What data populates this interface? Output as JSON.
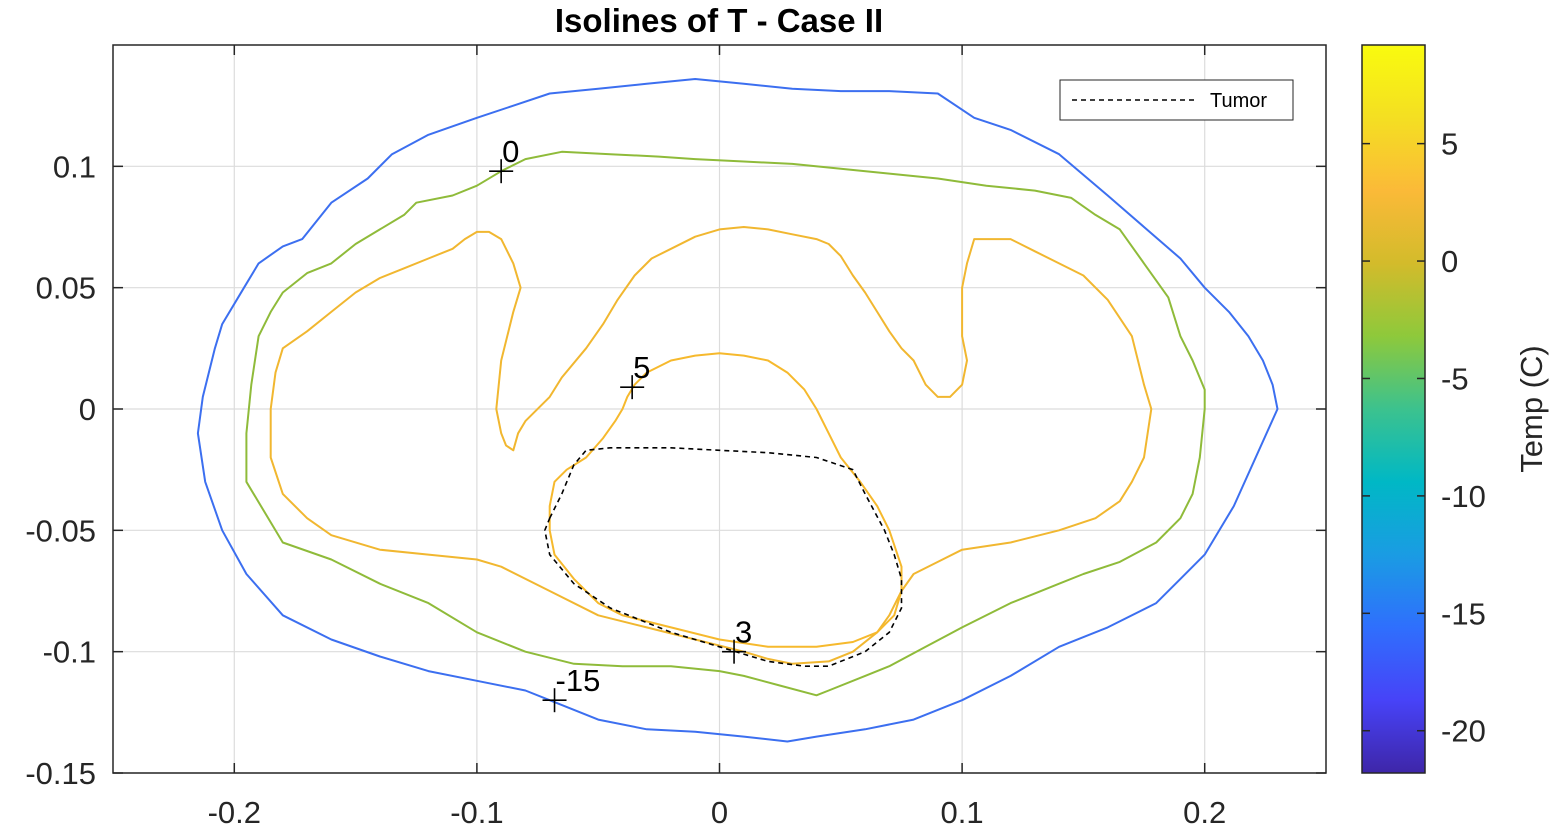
{
  "chart_data": {
    "type": "contour",
    "title": "Isolines of T - Case II",
    "xlabel": "",
    "ylabel": "",
    "xlim": [
      -0.25,
      0.25
    ],
    "ylim": [
      -0.15,
      0.15
    ],
    "xticks": [
      -0.2,
      -0.1,
      0,
      0.1,
      0.2
    ],
    "xtick_labels": [
      "-0.2",
      "-0.1",
      "0",
      "0.1",
      "0.2"
    ],
    "yticks": [
      -0.15,
      -0.1,
      -0.05,
      0,
      0.05,
      0.1
    ],
    "ytick_labels": [
      "-0.15",
      "-0.1",
      "-0.05",
      "0",
      "0.05",
      "0.1"
    ],
    "grid": true,
    "colorbar": {
      "label": "Temp (C)",
      "range": [
        -21.8,
        9.2
      ],
      "ticks": [
        -20,
        -15,
        -10,
        -5,
        0,
        5
      ],
      "tick_labels": [
        "-20",
        "-15",
        "-10",
        "-5",
        "0",
        "5"
      ],
      "colors": [
        "#3e26a8",
        "#4743f8",
        "#2f6ffd",
        "#1a9ce3",
        "#00b8c5",
        "#3cc28e",
        "#8ec93b",
        "#d3bb2b",
        "#fbba38",
        "#f4df22",
        "#f9fb0e"
      ]
    },
    "legend": {
      "entries": [
        "Tumor"
      ],
      "placement": "top-right"
    },
    "isolines": [
      {
        "level": -15,
        "color": "#3c6ff0",
        "points": [
          [
            -0.215,
            -0.01
          ],
          [
            -0.213,
            0.005
          ],
          [
            -0.208,
            0.025
          ],
          [
            -0.205,
            0.035
          ],
          [
            -0.196,
            0.05
          ],
          [
            -0.19,
            0.06
          ],
          [
            -0.18,
            0.067
          ],
          [
            -0.172,
            0.07
          ],
          [
            -0.16,
            0.085
          ],
          [
            -0.145,
            0.095
          ],
          [
            -0.135,
            0.105
          ],
          [
            -0.12,
            0.113
          ],
          [
            -0.1,
            0.12
          ],
          [
            -0.085,
            0.125
          ],
          [
            -0.07,
            0.13
          ],
          [
            -0.05,
            0.132
          ],
          [
            -0.03,
            0.134
          ],
          [
            -0.01,
            0.136
          ],
          [
            0.01,
            0.134
          ],
          [
            0.03,
            0.132
          ],
          [
            0.05,
            0.131
          ],
          [
            0.07,
            0.131
          ],
          [
            0.09,
            0.13
          ],
          [
            0.105,
            0.12
          ],
          [
            0.12,
            0.115
          ],
          [
            0.14,
            0.105
          ],
          [
            0.16,
            0.088
          ],
          [
            0.175,
            0.075
          ],
          [
            0.19,
            0.062
          ],
          [
            0.2,
            0.05
          ],
          [
            0.21,
            0.04
          ],
          [
            0.218,
            0.03
          ],
          [
            0.224,
            0.02
          ],
          [
            0.228,
            0.01
          ],
          [
            0.23,
            0
          ],
          [
            0.212,
            -0.04
          ],
          [
            0.2,
            -0.06
          ],
          [
            0.19,
            -0.07
          ],
          [
            0.18,
            -0.08
          ],
          [
            0.16,
            -0.09
          ],
          [
            0.14,
            -0.098
          ],
          [
            0.12,
            -0.11
          ],
          [
            0.1,
            -0.12
          ],
          [
            0.08,
            -0.128
          ],
          [
            0.06,
            -0.132
          ],
          [
            0.04,
            -0.135
          ],
          [
            0.028,
            -0.137
          ],
          [
            0.01,
            -0.135
          ],
          [
            -0.01,
            -0.133
          ],
          [
            -0.03,
            -0.132
          ],
          [
            -0.05,
            -0.128
          ],
          [
            -0.07,
            -0.12
          ],
          [
            -0.08,
            -0.116
          ],
          [
            -0.1,
            -0.112
          ],
          [
            -0.12,
            -0.108
          ],
          [
            -0.14,
            -0.102
          ],
          [
            -0.16,
            -0.095
          ],
          [
            -0.18,
            -0.085
          ],
          [
            -0.195,
            -0.068
          ],
          [
            -0.205,
            -0.05
          ],
          [
            -0.212,
            -0.03
          ],
          [
            -0.215,
            -0.01
          ]
        ]
      },
      {
        "level": 0,
        "color": "#8fbb3a",
        "points": [
          [
            -0.195,
            -0.03
          ],
          [
            -0.195,
            -0.01
          ],
          [
            -0.193,
            0.01
          ],
          [
            -0.19,
            0.03
          ],
          [
            -0.185,
            0.04
          ],
          [
            -0.18,
            0.048
          ],
          [
            -0.17,
            0.056
          ],
          [
            -0.16,
            0.06
          ],
          [
            -0.15,
            0.068
          ],
          [
            -0.14,
            0.074
          ],
          [
            -0.13,
            0.08
          ],
          [
            -0.125,
            0.085
          ],
          [
            -0.11,
            0.088
          ],
          [
            -0.1,
            0.092
          ],
          [
            -0.09,
            0.098
          ],
          [
            -0.08,
            0.103
          ],
          [
            -0.065,
            0.106
          ],
          [
            -0.045,
            0.105
          ],
          [
            -0.025,
            0.104
          ],
          [
            -0.01,
            0.103
          ],
          [
            0.01,
            0.102
          ],
          [
            0.03,
            0.101
          ],
          [
            0.05,
            0.099
          ],
          [
            0.07,
            0.097
          ],
          [
            0.09,
            0.095
          ],
          [
            0.11,
            0.092
          ],
          [
            0.13,
            0.09
          ],
          [
            0.145,
            0.087
          ],
          [
            0.155,
            0.08
          ],
          [
            0.165,
            0.074
          ],
          [
            0.175,
            0.06
          ],
          [
            0.185,
            0.046
          ],
          [
            0.19,
            0.03
          ],
          [
            0.195,
            0.02
          ],
          [
            0.2,
            0.008
          ],
          [
            0.2,
            0
          ],
          [
            0.198,
            -0.02
          ],
          [
            0.195,
            -0.035
          ],
          [
            0.19,
            -0.045
          ],
          [
            0.18,
            -0.055
          ],
          [
            0.165,
            -0.063
          ],
          [
            0.15,
            -0.068
          ],
          [
            0.14,
            -0.072
          ],
          [
            0.13,
            -0.076
          ],
          [
            0.12,
            -0.08
          ],
          [
            0.1,
            -0.09
          ],
          [
            0.085,
            -0.098
          ],
          [
            0.07,
            -0.106
          ],
          [
            0.06,
            -0.11
          ],
          [
            0.045,
            -0.116
          ],
          [
            0.04,
            -0.118
          ],
          [
            0.025,
            -0.114
          ],
          [
            0.01,
            -0.11
          ],
          [
            0,
            -0.108
          ],
          [
            -0.02,
            -0.106
          ],
          [
            -0.04,
            -0.106
          ],
          [
            -0.06,
            -0.105
          ],
          [
            -0.08,
            -0.1
          ],
          [
            -0.1,
            -0.092
          ],
          [
            -0.12,
            -0.08
          ],
          [
            -0.14,
            -0.072
          ],
          [
            -0.16,
            -0.062
          ],
          [
            -0.18,
            -0.055
          ],
          [
            -0.195,
            -0.03
          ]
        ]
      },
      {
        "level": 3,
        "color": "#f1b730",
        "points": [
          [
            -0.185,
            -0.02
          ],
          [
            -0.185,
            0
          ],
          [
            -0.183,
            0.015
          ],
          [
            -0.18,
            0.025
          ],
          [
            -0.17,
            0.032
          ],
          [
            -0.16,
            0.04
          ],
          [
            -0.15,
            0.048
          ],
          [
            -0.14,
            0.054
          ],
          [
            -0.13,
            0.058
          ],
          [
            -0.12,
            0.062
          ],
          [
            -0.11,
            0.066
          ],
          [
            -0.105,
            0.07
          ],
          [
            -0.1,
            0.073
          ],
          [
            -0.095,
            0.073
          ],
          [
            -0.09,
            0.07
          ],
          [
            -0.085,
            0.06
          ],
          [
            -0.082,
            0.05
          ],
          [
            -0.085,
            0.04
          ],
          [
            -0.09,
            0.02
          ],
          [
            -0.092,
            0
          ],
          [
            -0.09,
            -0.01
          ],
          [
            -0.088,
            -0.015
          ],
          [
            -0.085,
            -0.017
          ],
          [
            -0.083,
            -0.01
          ],
          [
            -0.08,
            -0.005
          ],
          [
            -0.07,
            0.005
          ],
          [
            -0.065,
            0.013
          ],
          [
            -0.055,
            0.025
          ],
          [
            -0.048,
            0.035
          ],
          [
            -0.042,
            0.045
          ],
          [
            -0.035,
            0.055
          ],
          [
            -0.028,
            0.062
          ],
          [
            -0.02,
            0.066
          ],
          [
            -0.01,
            0.071
          ],
          [
            0,
            0.074
          ],
          [
            0.01,
            0.075
          ],
          [
            0.02,
            0.074
          ],
          [
            0.03,
            0.072
          ],
          [
            0.04,
            0.07
          ],
          [
            0.045,
            0.068
          ],
          [
            0.05,
            0.063
          ],
          [
            0.055,
            0.055
          ],
          [
            0.06,
            0.048
          ],
          [
            0.065,
            0.04
          ],
          [
            0.07,
            0.032
          ],
          [
            0.075,
            0.025
          ],
          [
            0.08,
            0.02
          ],
          [
            0.085,
            0.01
          ],
          [
            0.09,
            0.005
          ],
          [
            0.095,
            0.005
          ],
          [
            0.1,
            0.01
          ],
          [
            0.102,
            0.02
          ],
          [
            0.1,
            0.03
          ],
          [
            0.1,
            0.04
          ],
          [
            0.1,
            0.05
          ],
          [
            0.102,
            0.06
          ],
          [
            0.105,
            0.07
          ],
          [
            0.11,
            0.07
          ],
          [
            0.12,
            0.07
          ],
          [
            0.13,
            0.065
          ],
          [
            0.14,
            0.06
          ],
          [
            0.15,
            0.055
          ],
          [
            0.16,
            0.045
          ],
          [
            0.17,
            0.03
          ],
          [
            0.175,
            0.01
          ],
          [
            0.178,
            0
          ],
          [
            0.175,
            -0.02
          ],
          [
            0.17,
            -0.03
          ],
          [
            0.165,
            -0.038
          ],
          [
            0.155,
            -0.045
          ],
          [
            0.14,
            -0.05
          ],
          [
            0.12,
            -0.055
          ],
          [
            0.1,
            -0.058
          ],
          [
            0.09,
            -0.063
          ],
          [
            0.08,
            -0.068
          ],
          [
            0.075,
            -0.075
          ],
          [
            0.07,
            -0.085
          ],
          [
            0.065,
            -0.092
          ],
          [
            0.055,
            -0.1
          ],
          [
            0.045,
            -0.104
          ],
          [
            0.03,
            -0.105
          ],
          [
            0.02,
            -0.103
          ],
          [
            0.01,
            -0.1
          ],
          [
            -0.01,
            -0.095
          ],
          [
            -0.03,
            -0.09
          ],
          [
            -0.05,
            -0.085
          ],
          [
            -0.07,
            -0.075
          ],
          [
            -0.09,
            -0.065
          ],
          [
            -0.1,
            -0.062
          ],
          [
            -0.12,
            -0.06
          ],
          [
            -0.14,
            -0.058
          ],
          [
            -0.16,
            -0.052
          ],
          [
            -0.17,
            -0.045
          ],
          [
            -0.18,
            -0.035
          ],
          [
            -0.185,
            -0.02
          ]
        ]
      },
      {
        "level": 5,
        "color": "#f6b92d",
        "points": [
          [
            -0.07,
            -0.04
          ],
          [
            -0.07,
            -0.05
          ],
          [
            -0.068,
            -0.06
          ],
          [
            -0.06,
            -0.07
          ],
          [
            -0.05,
            -0.08
          ],
          [
            -0.04,
            -0.085
          ],
          [
            -0.02,
            -0.09
          ],
          [
            0,
            -0.095
          ],
          [
            0.02,
            -0.098
          ],
          [
            0.04,
            -0.098
          ],
          [
            0.055,
            -0.096
          ],
          [
            0.065,
            -0.092
          ],
          [
            0.072,
            -0.085
          ],
          [
            0.075,
            -0.075
          ],
          [
            0.075,
            -0.065
          ],
          [
            0.07,
            -0.05
          ],
          [
            0.065,
            -0.04
          ],
          [
            0.058,
            -0.03
          ],
          [
            0.05,
            -0.02
          ],
          [
            0.045,
            -0.01
          ],
          [
            0.04,
            0
          ],
          [
            0.035,
            0.008
          ],
          [
            0.028,
            0.015
          ],
          [
            0.02,
            0.02
          ],
          [
            0.01,
            0.022
          ],
          [
            0,
            0.023
          ],
          [
            -0.01,
            0.022
          ],
          [
            -0.02,
            0.02
          ],
          [
            -0.03,
            0.015
          ],
          [
            -0.035,
            0.01
          ],
          [
            -0.038,
            0.005
          ],
          [
            -0.04,
            0
          ],
          [
            -0.043,
            -0.005
          ],
          [
            -0.048,
            -0.012
          ],
          [
            -0.055,
            -0.02
          ],
          [
            -0.063,
            -0.025
          ],
          [
            -0.068,
            -0.03
          ],
          [
            -0.07,
            -0.04
          ]
        ]
      }
    ],
    "tumor": {
      "style": "dashed",
      "color": "#000000",
      "points": [
        [
          -0.07,
          -0.045
        ],
        [
          -0.065,
          -0.035
        ],
        [
          -0.06,
          -0.023
        ],
        [
          -0.055,
          -0.017
        ],
        [
          -0.045,
          -0.016
        ],
        [
          -0.02,
          -0.016
        ],
        [
          0,
          -0.017
        ],
        [
          0.02,
          -0.018
        ],
        [
          0.04,
          -0.02
        ],
        [
          0.055,
          -0.025
        ],
        [
          0.06,
          -0.035
        ],
        [
          0.068,
          -0.05
        ],
        [
          0.072,
          -0.06
        ],
        [
          0.075,
          -0.07
        ],
        [
          0.075,
          -0.082
        ],
        [
          0.07,
          -0.092
        ],
        [
          0.06,
          -0.1
        ],
        [
          0.045,
          -0.106
        ],
        [
          0.035,
          -0.106
        ],
        [
          0.02,
          -0.104
        ],
        [
          0,
          -0.098
        ],
        [
          -0.02,
          -0.092
        ],
        [
          -0.045,
          -0.082
        ],
        [
          -0.06,
          -0.072
        ],
        [
          -0.07,
          -0.06
        ],
        [
          -0.072,
          -0.05
        ],
        [
          -0.07,
          -0.045
        ]
      ]
    },
    "markers": [
      {
        "x": -0.09,
        "y": 0.098,
        "label": "0"
      },
      {
        "x": -0.036,
        "y": 0.009,
        "label": "5"
      },
      {
        "x": 0.006,
        "y": -0.1,
        "label": "3"
      },
      {
        "x": -0.068,
        "y": -0.12,
        "label": "-15"
      }
    ]
  }
}
